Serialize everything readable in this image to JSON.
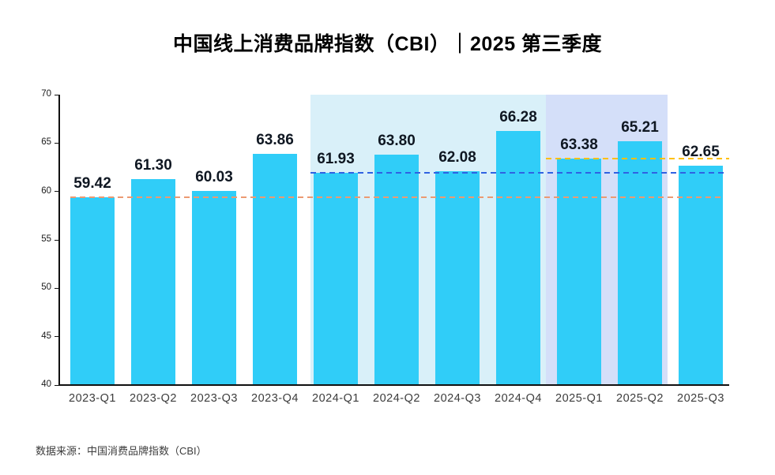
{
  "title": "中国线上消费品牌指数（CBI）｜2025 第三季度",
  "source_note": "数据来源：中国消费品牌指数（CBI）",
  "colors": {
    "bar": "#30CDF8",
    "band_2024": "#D9F0F9",
    "band_2025": "#D4DFF9",
    "ref_2023_baseline": "#EC9A72",
    "ref_2024_baseline": "#2F62E2",
    "ref_2025_baseline": "#FFC000",
    "axis": "#111111",
    "value_label": "#0f1722",
    "tick_label": "#3c3c3c"
  },
  "chart_data": {
    "type": "bar",
    "title": "中国线上消费品牌指数（CBI）｜2025 第三季度",
    "categories": [
      "2023-Q1",
      "2023-Q2",
      "2023-Q3",
      "2023-Q4",
      "2024-Q1",
      "2024-Q2",
      "2024-Q3",
      "2024-Q4",
      "2025-Q1",
      "2025-Q2",
      "2025-Q3"
    ],
    "values": [
      59.42,
      61.3,
      60.03,
      63.86,
      61.93,
      63.8,
      62.08,
      66.28,
      63.38,
      65.21,
      62.65
    ],
    "value_labels": [
      "59.42",
      "61.30",
      "60.03",
      "63.86",
      "61.93",
      "63.80",
      "62.08",
      "66.28",
      "63.38",
      "65.21",
      "62.65"
    ],
    "xlabel": "",
    "ylabel": "",
    "ylim": [
      40,
      70
    ],
    "yticks": [
      40,
      45,
      50,
      55,
      60,
      65,
      70
    ],
    "grid": false,
    "legend": "none",
    "highlight_bands": [
      {
        "from_cat": 4,
        "to_cat": 7,
        "color_key": "band_2024"
      },
      {
        "from_cat": 8,
        "to_cat": 9,
        "color_key": "band_2025"
      }
    ],
    "ref_lines": [
      {
        "value": 59.42,
        "from_cat": 0,
        "color_key": "ref_2023_baseline",
        "extended": false
      },
      {
        "value": 61.93,
        "from_cat": 4,
        "color_key": "ref_2024_baseline",
        "extended": false
      },
      {
        "value": 63.38,
        "from_cat": 8,
        "color_key": "ref_2025_baseline",
        "extended": true
      }
    ]
  }
}
